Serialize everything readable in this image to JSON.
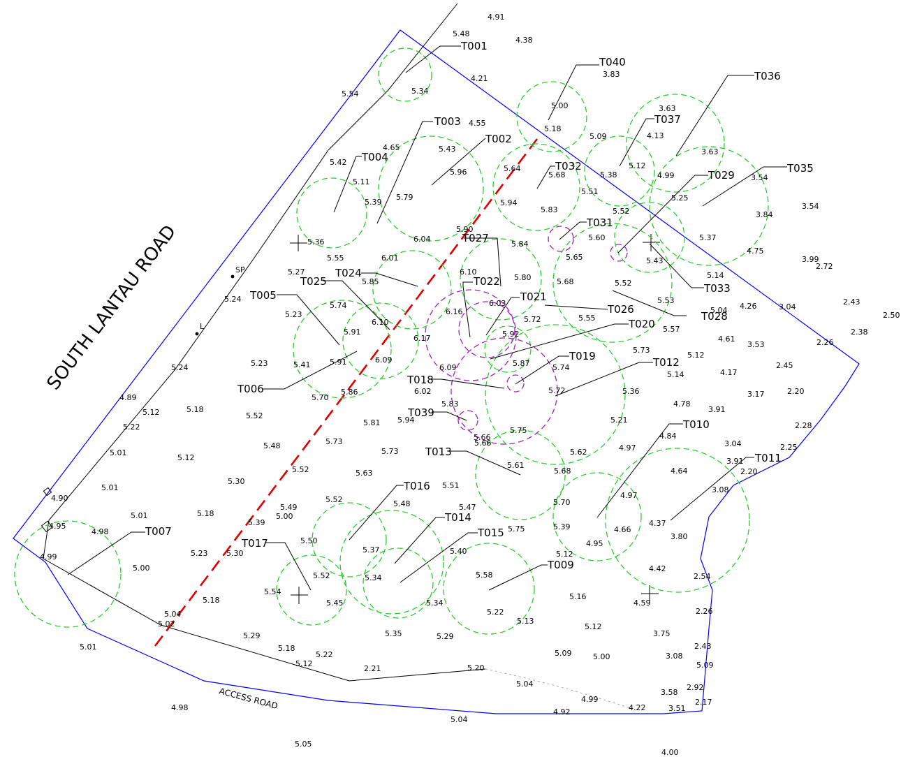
{
  "road_labels": {
    "south_lantau_road": "SOUTH LANTAU ROAD",
    "access_road": "ACCESS ROAD"
  },
  "symbols": {
    "sp": "SP",
    "l": "L"
  },
  "colors": {
    "site_boundary": "#0000ff",
    "tree_canopy": "#2ecc2e",
    "tree_canopy_alt": "#a020c0",
    "section_line": "#e00000",
    "lines": "#000000"
  },
  "tree_tags": [
    "T001",
    "T002",
    "T003",
    "T004",
    "T005",
    "T006",
    "T007",
    "T009",
    "T010",
    "T011",
    "T012",
    "T013",
    "T014",
    "T015",
    "T016",
    "T017",
    "T018",
    "T019",
    "T020",
    "T021",
    "T022",
    "T024",
    "T025",
    "T026",
    "T027",
    "T028",
    "T029",
    "T031",
    "T032",
    "T033",
    "T035",
    "T036",
    "T037",
    "T039",
    "T040"
  ],
  "spot_levels": [
    "4.91",
    "5.48",
    "4.38",
    "5.54",
    "4.21",
    "5.34",
    "3.83",
    "5.00",
    "5.18",
    "3.63",
    "4.55",
    "4.65",
    "5.43",
    "5.09",
    "4.13",
    "3.63",
    "5.42",
    "5.11",
    "5.64",
    "5.68",
    "5.38",
    "5.12",
    "4.99",
    "5.96",
    "5.79",
    "5.39",
    "5.51",
    "3.54",
    "5.25",
    "5.36",
    "5.94",
    "5.83",
    "3.84",
    "3.54",
    "6.04",
    "5.90",
    "5.52",
    "5.60",
    "5.37",
    "5.84",
    "5.27",
    "5.55",
    "6.01",
    "5.65",
    "4.75",
    "3.99",
    "2.72",
    "5.24",
    "5.85",
    "6.10",
    "5.43",
    "5.14",
    "5.80",
    "5.68",
    "5.52",
    "5.53",
    "6.03",
    "5.04",
    "4.26",
    "3.04",
    "2.43",
    "2.50",
    "5.23",
    "5.74",
    "6.16",
    "5.55",
    "4.61",
    "2.38",
    "5.91",
    "6.10",
    "6.17",
    "5.92",
    "5.72",
    "5.57",
    "3.53",
    "2.26",
    "5.24",
    "5.23",
    "5.41",
    "5.91",
    "6.09",
    "5.87",
    "5.74",
    "5.73",
    "5.12",
    "2.45",
    "6.09",
    "5.14",
    "4.17",
    "5.70",
    "5.86",
    "6.02",
    "5.72",
    "5.36",
    "3.17",
    "2.20",
    "4.89",
    "5.12",
    "5.18",
    "5.83",
    "4.78",
    "3.91",
    "5.22",
    "5.52",
    "5.81",
    "5.94",
    "5.21",
    "2.28",
    "5.48",
    "5.73",
    "5.66",
    "4.84",
    "3.04",
    "5.01",
    "5.12",
    "5.73",
    "5.75",
    "5.66",
    "2.25",
    "5.52",
    "5.62",
    "4.97",
    "3.91",
    "2.20",
    "5.30",
    "5.63",
    "5.51",
    "5.61",
    "4.64",
    "5.01",
    "5.68",
    "3.08",
    "5.52",
    "5.48",
    "4.97",
    "4.90",
    "5.49",
    "5.47",
    "5.70",
    "5.01",
    "5.18",
    "5.00",
    "5.39",
    "4.37",
    "4.95",
    "5.75",
    "5.39",
    "4.66",
    "3.80",
    "4.98",
    "5.50",
    "5.37",
    "5.40",
    "5.12",
    "4.99",
    "5.23",
    "5.30",
    "4.95",
    "5.00",
    "5.34",
    "5.58",
    "4.42",
    "2.54",
    "5.52",
    "5.54",
    "5.45",
    "5.16",
    "4.59",
    "5.18",
    "5.34",
    "5.22",
    "5.13",
    "2.26",
    "5.04",
    "5.02",
    "5.12",
    "3.75",
    "5.29",
    "5.35",
    "5.29",
    "5.01",
    "5.18",
    "5.22",
    "5.09",
    "5.00",
    "3.08",
    "2.43",
    "5.12",
    "2.21",
    "5.09",
    "5.20",
    "5.04",
    "3.58",
    "2.92",
    "4.99",
    "4.98",
    "4.22",
    "3.51",
    "2.17",
    "4.92",
    "5.04",
    "5.05",
    "4.00"
  ]
}
